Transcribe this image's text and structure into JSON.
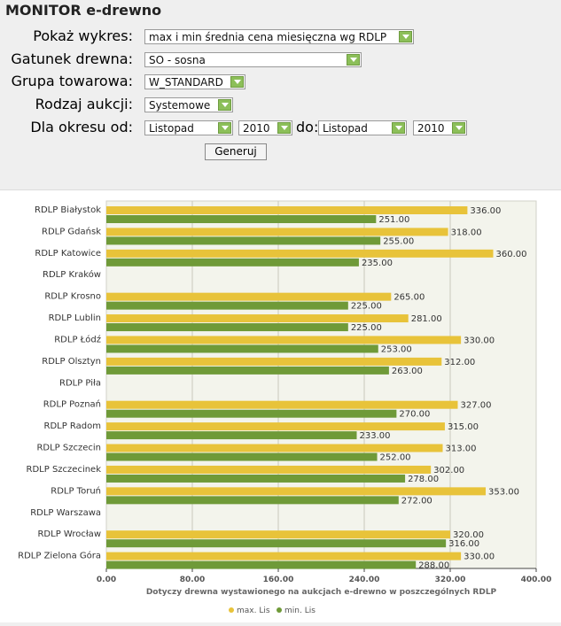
{
  "title": "MONITOR e-drewno",
  "form": {
    "chart_label": "Pokaż wykres:",
    "chart_value": "max i min średnia cena miesięczna wg RDLP",
    "species_label": "Gatunek drewna:",
    "species_value": "SO - sosna",
    "group_label": "Grupa towarowa:",
    "group_value": "W_STANDARD",
    "auction_label": "Rodzaj aukcji:",
    "auction_value": "Systemowe",
    "period_label": "Dla okresu od:",
    "from_month": "Listopad",
    "from_year": "2010",
    "to_label": "do:",
    "to_month": "Listopad",
    "to_year": "2010",
    "generate_label": "Generuj"
  },
  "chart_data": {
    "type": "bar",
    "orientation": "horizontal",
    "categories": [
      "RDLP Białystok",
      "RDLP Gdańsk",
      "RDLP Katowice",
      "RDLP Kraków",
      "RDLP Krosno",
      "RDLP Lublin",
      "RDLP Łódź",
      "RDLP Olsztyn",
      "RDLP Piła",
      "RDLP Poznań",
      "RDLP Radom",
      "RDLP Szczecin",
      "RDLP Szczecinek",
      "RDLP Toruń",
      "RDLP Warszawa",
      "RDLP Wrocław",
      "RDLP Zielona Góra"
    ],
    "series": [
      {
        "name": "max. Lis",
        "color": "#e8c33a",
        "values": [
          336,
          318,
          360,
          null,
          265,
          281,
          330,
          312,
          null,
          327,
          315,
          313,
          302,
          353,
          null,
          320,
          330
        ],
        "labels": [
          "336.00",
          "318.00",
          "360.00",
          "",
          "265.00",
          "281.00",
          "330.00",
          "312.00",
          "",
          "327.00",
          "315.00",
          "313.00",
          "302.00",
          "353.00",
          "",
          "320.00",
          "330.00"
        ]
      },
      {
        "name": "min. Lis",
        "color": "#6f9a38",
        "values": [
          251,
          255,
          235,
          null,
          225,
          225,
          253,
          263,
          null,
          270,
          233,
          252,
          278,
          272,
          null,
          316,
          288
        ],
        "labels": [
          "251.00",
          "255.00",
          "235.00",
          "",
          "225.00",
          "225.00",
          "253.00",
          "263.00",
          "",
          "270.00",
          "233.00",
          "252.00",
          "278.00",
          "272.00",
          "",
          "316.00",
          "288.00"
        ]
      }
    ],
    "xlim": [
      0,
      400
    ],
    "ticks": [
      0,
      80,
      160,
      240,
      320,
      400
    ],
    "tick_labels": [
      "0.00",
      "80.00",
      "160.00",
      "240.00",
      "320.00",
      "400.00"
    ],
    "xlabel": "Dotyczy drewna wystawionego na aukcjach e-drewno w poszczególnych RDLP",
    "grid": true,
    "legend": "bottom-center"
  }
}
